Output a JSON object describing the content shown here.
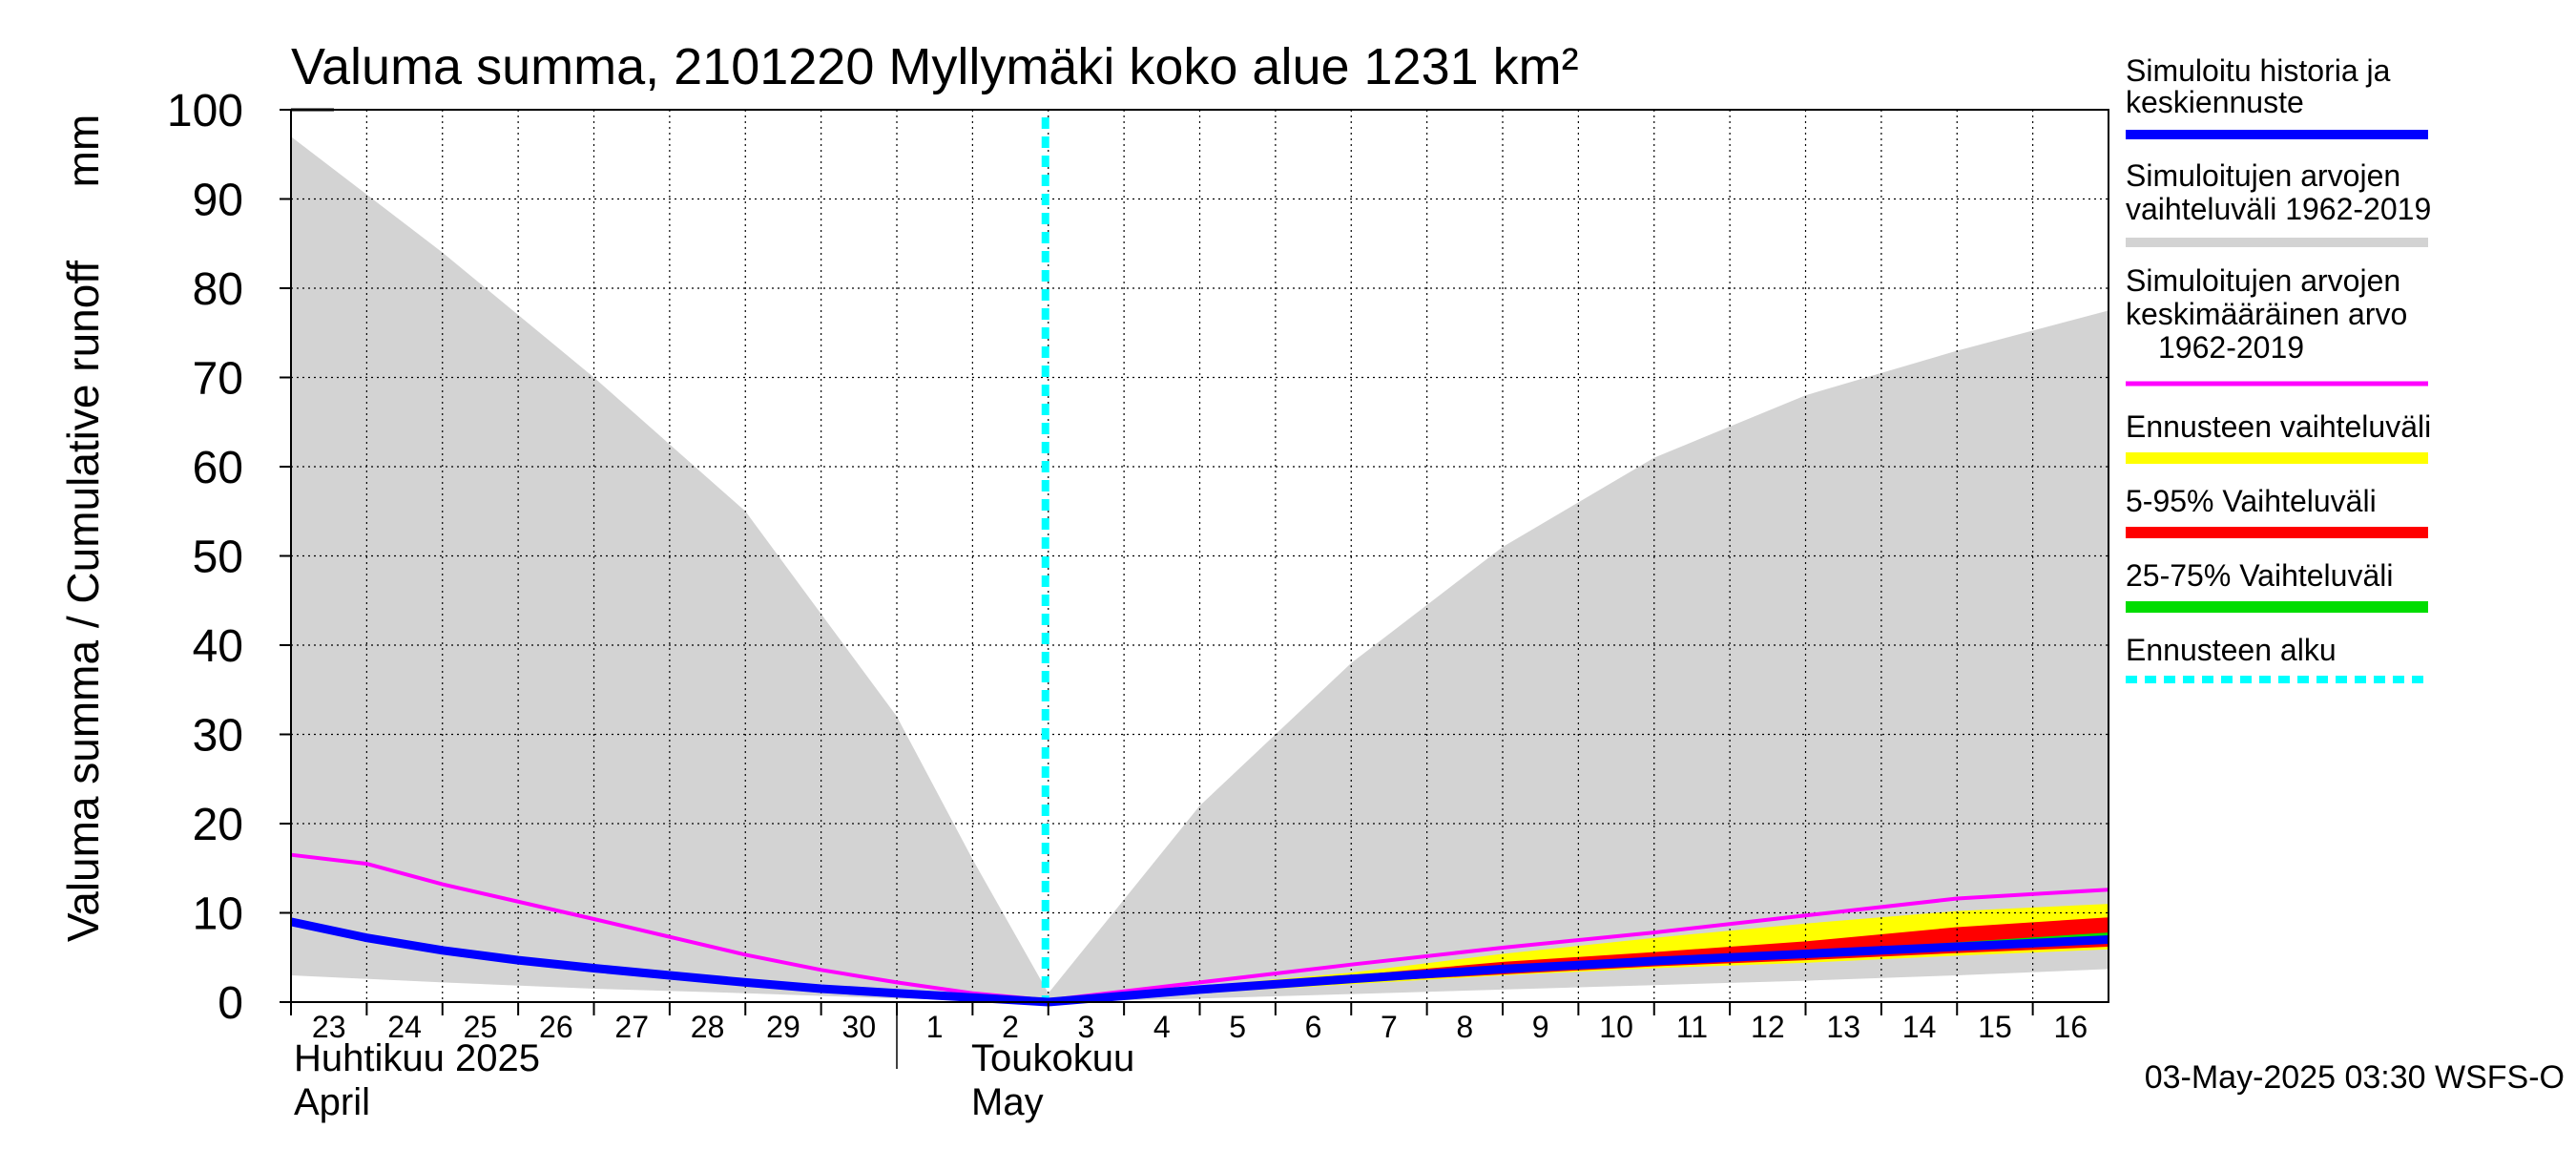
{
  "chart_data": {
    "type": "area",
    "title": "Valuma summa, 2101220 Myllymäki koko alue 1231 km²",
    "ylabel_fi": "Valuma summa / Cumulative runoff",
    "ylabel_unit": "mm",
    "ylim": [
      0,
      100
    ],
    "yticks": [
      0,
      10,
      20,
      30,
      40,
      50,
      60,
      70,
      80,
      90,
      100
    ],
    "x_start": "2025-04-23",
    "x_end": "2025-05-17",
    "xticks": [
      {
        "date": "2025-04-23",
        "label": "23"
      },
      {
        "date": "2025-04-24",
        "label": "24"
      },
      {
        "date": "2025-04-25",
        "label": "25"
      },
      {
        "date": "2025-04-26",
        "label": "26"
      },
      {
        "date": "2025-04-27",
        "label": "27"
      },
      {
        "date": "2025-04-28",
        "label": "28"
      },
      {
        "date": "2025-04-29",
        "label": "29"
      },
      {
        "date": "2025-04-30",
        "label": "30"
      },
      {
        "date": "2025-05-01",
        "label": "1"
      },
      {
        "date": "2025-05-02",
        "label": "2"
      },
      {
        "date": "2025-05-03",
        "label": "3"
      },
      {
        "date": "2025-05-04",
        "label": "4"
      },
      {
        "date": "2025-05-05",
        "label": "5"
      },
      {
        "date": "2025-05-06",
        "label": "6"
      },
      {
        "date": "2025-05-07",
        "label": "7"
      },
      {
        "date": "2025-05-08",
        "label": "8"
      },
      {
        "date": "2025-05-09",
        "label": "9"
      },
      {
        "date": "2025-05-10",
        "label": "10"
      },
      {
        "date": "2025-05-11",
        "label": "11"
      },
      {
        "date": "2025-05-12",
        "label": "12"
      },
      {
        "date": "2025-05-13",
        "label": "13"
      },
      {
        "date": "2025-05-14",
        "label": "14"
      },
      {
        "date": "2025-05-15",
        "label": "15"
      },
      {
        "date": "2025-05-16",
        "label": "16"
      }
    ],
    "month_labels": [
      {
        "line1": "Huhtikuu  2025",
        "line2": "April",
        "date": "2025-04-23"
      },
      {
        "line1": "Toukokuu",
        "line2": "May",
        "date": "2025-05-02"
      }
    ],
    "month_divider_date": "2025-05-01",
    "forecast_start_date": "2025-05-03",
    "series": [
      {
        "name": "Simuloitujen arvojen vaihteluväli 1962-2019",
        "kind": "band",
        "color": "#d3d3d3",
        "x": [
          "2025-04-23",
          "2025-04-25",
          "2025-04-27",
          "2025-04-29",
          "2025-05-01",
          "2025-05-02",
          "2025-05-03",
          "2025-05-05",
          "2025-05-07",
          "2025-05-09",
          "2025-05-11",
          "2025-05-13",
          "2025-05-15",
          "2025-05-17"
        ],
        "low": [
          3,
          2.2,
          1.5,
          1,
          0.4,
          0.2,
          0,
          0.4,
          0.9,
          1.4,
          1.9,
          2.4,
          3,
          3.7
        ],
        "high": [
          97,
          84,
          70,
          55,
          32,
          16,
          1,
          22,
          38,
          51,
          61,
          68,
          73,
          77.5
        ]
      },
      {
        "name": "Ennusteen vaihteluväli",
        "kind": "band",
        "color": "#ffff00",
        "x": [
          "2025-05-03",
          "2025-05-05",
          "2025-05-07",
          "2025-05-09",
          "2025-05-11",
          "2025-05-13",
          "2025-05-15",
          "2025-05-17"
        ],
        "low": [
          0,
          1,
          2,
          3,
          3.8,
          4.4,
          5.2,
          5.9
        ],
        "high": [
          0,
          1.8,
          3.3,
          5.4,
          7.2,
          8.8,
          10.2,
          11
        ]
      },
      {
        "name": "5-95% Vaihteluväli",
        "kind": "band",
        "color": "#ff0000",
        "x": [
          "2025-05-03",
          "2025-05-05",
          "2025-05-07",
          "2025-05-09",
          "2025-05-11",
          "2025-05-13",
          "2025-05-15",
          "2025-05-17"
        ],
        "low": [
          0,
          1.1,
          2.2,
          3.1,
          4,
          4.7,
          5.5,
          6.2
        ],
        "high": [
          0,
          1.6,
          3,
          4.5,
          5.6,
          6.8,
          8.4,
          9.5
        ]
      },
      {
        "name": "25-75% Vaihteluväli",
        "kind": "band",
        "color": "#00dd00",
        "x": [
          "2025-05-03",
          "2025-05-05",
          "2025-05-07",
          "2025-05-09",
          "2025-05-11",
          "2025-05-13",
          "2025-05-15",
          "2025-05-17"
        ],
        "low": [
          0,
          1.3,
          2.5,
          3.5,
          4.4,
          5.1,
          5.9,
          6.6
        ],
        "high": [
          0,
          1.5,
          2.8,
          3.9,
          4.8,
          5.7,
          6.7,
          7.8
        ]
      },
      {
        "name": "Simuloitujen arvojen keskimääräinen arvo 1962-2019",
        "kind": "line",
        "color": "#ff00ff",
        "x": [
          "2025-04-23",
          "2025-04-24",
          "2025-04-25",
          "2025-04-27",
          "2025-04-29",
          "2025-04-30",
          "2025-05-01",
          "2025-05-02",
          "2025-05-03",
          "2025-05-05",
          "2025-05-07",
          "2025-05-09",
          "2025-05-11",
          "2025-05-13",
          "2025-05-15",
          "2025-05-17"
        ],
        "y": [
          16.5,
          15.5,
          13.2,
          9.3,
          5.3,
          3.6,
          2.2,
          1,
          0.2,
          2.2,
          4.2,
          6.1,
          7.8,
          9.7,
          11.6,
          12.6
        ]
      },
      {
        "name": "Simuloitu historia ja keskiennuste",
        "kind": "line",
        "color": "#0000ff",
        "x": [
          "2025-04-23",
          "2025-04-24",
          "2025-04-25",
          "2025-04-26",
          "2025-04-27",
          "2025-04-28",
          "2025-04-29",
          "2025-04-30",
          "2025-05-01",
          "2025-05-02",
          "2025-05-03",
          "2025-05-05",
          "2025-05-07",
          "2025-05-09",
          "2025-05-11",
          "2025-05-13",
          "2025-05-15",
          "2025-05-17"
        ],
        "y": [
          9,
          7.2,
          5.8,
          4.7,
          3.8,
          3,
          2.2,
          1.5,
          1,
          0.5,
          0,
          1.4,
          2.6,
          3.7,
          4.6,
          5.4,
          6.2,
          7
        ]
      }
    ],
    "legend": [
      {
        "label": "Simuloitu historia ja keskiennuste",
        "color": "#0000ff",
        "style": "solid"
      },
      {
        "label": "Simuloitujen arvojen vaihteluväli 1962-2019",
        "color": "#d3d3d3",
        "style": "solid"
      },
      {
        "label": "Simuloitujen arvojen keskimääräinen arvo 1962-2019",
        "color": "#ff00ff",
        "style": "solid"
      },
      {
        "label": "Ennusteen vaihteluväli",
        "color": "#ffff00",
        "style": "solid"
      },
      {
        "label": "5-95% Vaihteluväli",
        "color": "#ff0000",
        "style": "solid"
      },
      {
        "label": "25-75% Vaihteluväli",
        "color": "#00dd00",
        "style": "solid"
      },
      {
        "label": "Ennusteen alku",
        "color": "#00ffff",
        "style": "dotted"
      }
    ],
    "legend_placement": "right",
    "grid": true,
    "timestamp": "03-May-2025 03:30 WSFS-O"
  },
  "legend_text": {
    "hist_l1": "Simuloitu historia ja",
    "hist_l2": "keskiennuste",
    "range_l1": "Simuloitujen arvojen",
    "range_l2": "vaihteluväli 1962-2019",
    "mean_l1": "Simuloitujen arvojen",
    "mean_l2": "keskimääräinen arvo",
    "mean_l3": "1962-2019",
    "fc_range": "Ennusteen vaihteluväli",
    "p595": "5-95% Vaihteluväli",
    "p2575": "25-75% Vaihteluväli",
    "fc_start": "Ennusteen alku"
  }
}
